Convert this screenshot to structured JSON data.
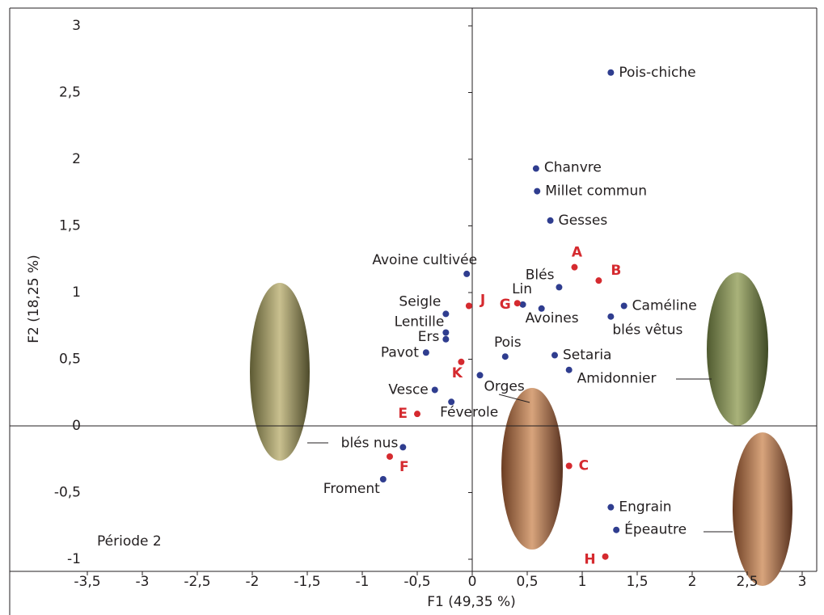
{
  "chart_data": {
    "type": "scatter",
    "xlabel": "F1 (49,35 %)",
    "ylabel": "F2 (18,25 %)",
    "annotation": "Période 2",
    "xlim": [
      -3.5,
      3
    ],
    "ylim": [
      -1,
      3
    ],
    "xticks": [
      {
        "value": -3.5,
        "label": "-3,5"
      },
      -3,
      {
        "value": -2.5,
        "label": "-2,5"
      },
      -2,
      {
        "value": -1.5,
        "label": "-1,5"
      },
      -1,
      {
        "value": -0.5,
        "label": "-0,5"
      },
      0,
      {
        "value": 0.5,
        "label": "0,5"
      },
      1,
      {
        "value": 1.5,
        "label": "1,5"
      },
      2,
      {
        "value": 2.5,
        "label": "2,5"
      },
      3
    ],
    "yticks": [
      -1,
      {
        "value": -0.5,
        "label": "-0,5"
      },
      0,
      {
        "value": 0.5,
        "label": "0,5"
      },
      1,
      {
        "value": 1.5,
        "label": "1,5"
      },
      2,
      {
        "value": 2.5,
        "label": "2,5"
      },
      3
    ],
    "series": [
      {
        "color": "#2f3d8f",
        "labels": [
          "Pois-chiche",
          "Chanvre",
          "Millet commun",
          "Gesses",
          "Avoine cultivée",
          "Blés",
          "Caméline",
          "Lin",
          "Avoines",
          "blés vêtus",
          "Seigle",
          "Lentille",
          "Ers",
          "Pavot",
          "Pois",
          "Setaria",
          "Amidonnier",
          "Orges",
          "Vesce",
          "Féverole",
          "blés nus",
          "Froment",
          "Engrain",
          "Épeautre"
        ],
        "x": [
          1.26,
          0.58,
          0.59,
          0.71,
          -0.05,
          0.79,
          1.38,
          0.46,
          0.63,
          1.26,
          -0.24,
          -0.24,
          -0.24,
          -0.42,
          0.3,
          0.75,
          0.88,
          0.07,
          -0.34,
          -0.19,
          -0.63,
          -0.81,
          1.26,
          1.31
        ],
        "values": [
          2.65,
          1.93,
          1.76,
          1.54,
          1.14,
          1.04,
          0.9,
          0.91,
          0.88,
          0.82,
          0.84,
          0.7,
          0.65,
          0.55,
          0.52,
          0.53,
          0.42,
          0.38,
          0.27,
          0.18,
          -0.16,
          -0.4,
          -0.61,
          -0.78
        ]
      },
      {
        "color": "#d52a2f",
        "labels": [
          "A",
          "B",
          "J",
          "G",
          "K",
          "E",
          "F",
          "C",
          "H"
        ],
        "x": [
          0.93,
          1.15,
          -0.03,
          0.41,
          -0.1,
          -0.5,
          -0.75,
          0.88,
          1.21
        ],
        "values": [
          1.19,
          1.09,
          0.9,
          0.92,
          0.48,
          0.09,
          -0.23,
          -0.3,
          -0.98
        ]
      }
    ]
  }
}
